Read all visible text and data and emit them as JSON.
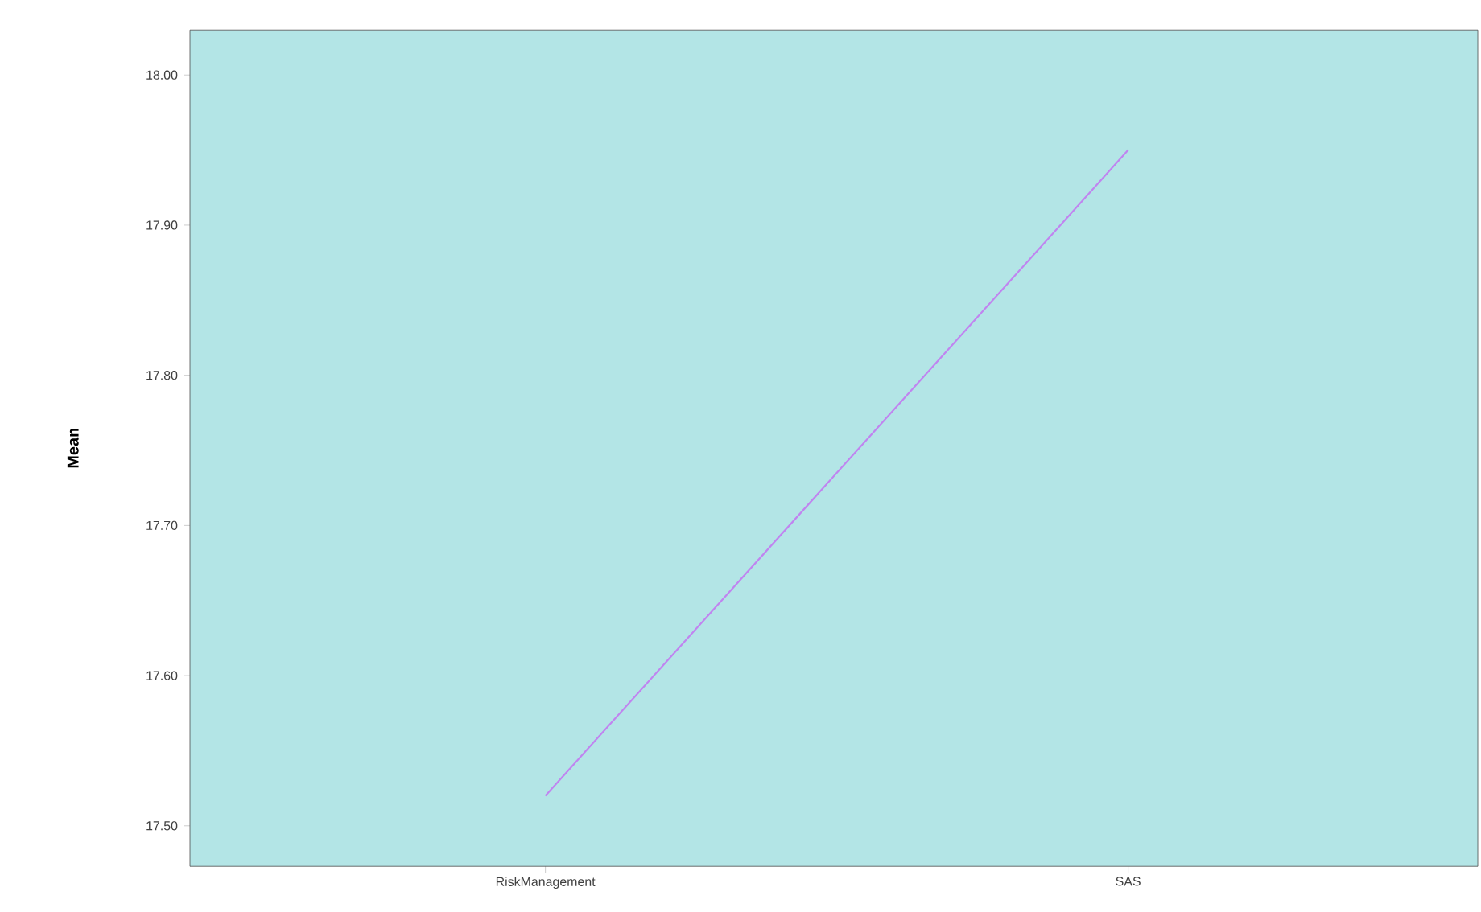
{
  "chart_data": {
    "type": "line",
    "ylabel": "Mean",
    "categories": [
      "RiskManagement",
      "SAS"
    ],
    "series": [
      {
        "color": "#c084f0",
        "values": [
          17.52,
          17.95
        ]
      }
    ],
    "ylim": [
      17.473,
      18.03
    ],
    "yticks": [
      {
        "value": 17.5,
        "label": "17.50"
      },
      {
        "value": 17.6,
        "label": "17.60"
      },
      {
        "value": 17.7,
        "label": "17.70"
      },
      {
        "value": 17.8,
        "label": "17.80"
      },
      {
        "value": 17.9,
        "label": "17.90"
      },
      {
        "value": 18.0,
        "label": "18.00"
      }
    ],
    "grid": false
  }
}
